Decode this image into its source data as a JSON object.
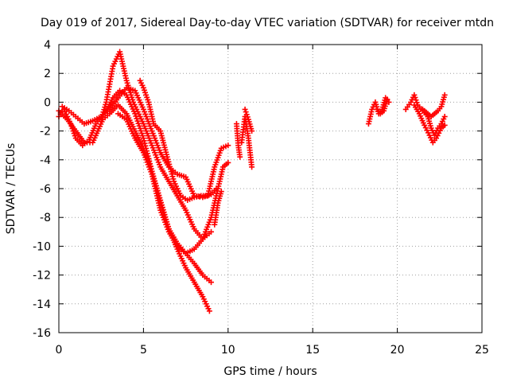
{
  "chart_data": {
    "type": "scatter",
    "title": "Day 019 of 2017, Sidereal Day-to-day VTEC variation (SDTVAR) for receiver mtdn",
    "xlabel": "GPS time / hours",
    "ylabel": "SDTVAR / TECUs",
    "xlim": [
      0,
      25
    ],
    "ylim": [
      -16,
      4
    ],
    "xticks": [
      0,
      5,
      10,
      15,
      20,
      25
    ],
    "yticks": [
      -16,
      -14,
      -12,
      -10,
      -8,
      -6,
      -4,
      -2,
      0,
      2,
      4
    ],
    "grid": true,
    "marker": "plus",
    "color": "#ff0000",
    "tracks": [
      [
        [
          0.0,
          -1.0
        ],
        [
          0.3,
          -0.5
        ],
        [
          0.7,
          -1.5
        ],
        [
          1.0,
          -2.5
        ],
        [
          1.4,
          -3.0
        ],
        [
          1.8,
          -2.6
        ],
        [
          2.2,
          -1.5
        ],
        [
          2.5,
          -1.0
        ],
        [
          2.8,
          -0.6
        ],
        [
          3.2,
          0.3
        ],
        [
          3.6,
          0.8
        ],
        [
          4.0,
          0.5
        ],
        [
          4.5,
          -0.8
        ],
        [
          5.0,
          -2.5
        ],
        [
          5.5,
          -4.8
        ],
        [
          6.0,
          -7.0
        ],
        [
          6.5,
          -8.8
        ],
        [
          7.0,
          -9.8
        ],
        [
          7.5,
          -10.5
        ],
        [
          8.0,
          -11.2
        ],
        [
          8.5,
          -12.0
        ],
        [
          9.0,
          -12.5
        ]
      ],
      [
        [
          0.0,
          -0.6
        ],
        [
          0.5,
          -1.2
        ],
        [
          1.0,
          -2.0
        ],
        [
          1.5,
          -2.8
        ],
        [
          2.0,
          -2.8
        ],
        [
          2.3,
          -2.0
        ],
        [
          2.6,
          -1.2
        ],
        [
          3.0,
          -0.8
        ],
        [
          3.5,
          -0.2
        ],
        [
          4.0,
          -0.8
        ],
        [
          4.5,
          -2.0
        ],
        [
          5.0,
          -3.2
        ],
        [
          5.5,
          -4.8
        ],
        [
          6.0,
          -6.8
        ],
        [
          6.5,
          -8.8
        ],
        [
          7.0,
          -10.2
        ],
        [
          7.5,
          -11.5
        ],
        [
          8.0,
          -12.5
        ],
        [
          8.5,
          -13.5
        ],
        [
          8.9,
          -14.5
        ]
      ],
      [
        [
          0.2,
          -0.3
        ],
        [
          0.6,
          -0.6
        ],
        [
          1.0,
          -1.0
        ],
        [
          1.5,
          -1.5
        ],
        [
          2.0,
          -1.3
        ],
        [
          2.5,
          -1.0
        ],
        [
          3.0,
          -0.5
        ],
        [
          3.5,
          0.3
        ],
        [
          4.0,
          1.0
        ],
        [
          4.5,
          0.8
        ],
        [
          5.0,
          -0.5
        ],
        [
          5.5,
          -2.0
        ],
        [
          6.0,
          -3.5
        ],
        [
          6.5,
          -4.5
        ],
        [
          7.0,
          -5.0
        ],
        [
          7.5,
          -5.2
        ],
        [
          8.0,
          -6.5
        ],
        [
          8.5,
          -6.6
        ],
        [
          9.0,
          -6.4
        ],
        [
          9.3,
          -6.0
        ]
      ],
      [
        [
          2.5,
          -1.2
        ],
        [
          2.8,
          0.0
        ],
        [
          3.2,
          2.5
        ],
        [
          3.6,
          3.5
        ],
        [
          4.0,
          1.5
        ],
        [
          4.4,
          0.0
        ],
        [
          5.0,
          -1.5
        ],
        [
          5.5,
          -3.0
        ],
        [
          6.0,
          -4.5
        ],
        [
          6.5,
          -5.5
        ],
        [
          7.0,
          -6.5
        ],
        [
          7.5,
          -7.5
        ],
        [
          8.0,
          -8.8
        ],
        [
          8.5,
          -9.5
        ],
        [
          9.0,
          -9.0
        ]
      ],
      [
        [
          4.8,
          1.5
        ],
        [
          5.0,
          1.0
        ],
        [
          5.3,
          0.0
        ],
        [
          5.6,
          -1.5
        ],
        [
          6.0,
          -2.0
        ],
        [
          6.4,
          -3.8
        ],
        [
          6.8,
          -5.5
        ],
        [
          7.2,
          -6.5
        ],
        [
          7.6,
          -6.8
        ],
        [
          8.0,
          -6.6
        ],
        [
          8.4,
          -6.5
        ],
        [
          8.8,
          -6.5
        ],
        [
          9.2,
          -4.5
        ],
        [
          9.6,
          -3.2
        ],
        [
          10.0,
          -3.0
        ]
      ],
      [
        [
          3.5,
          -0.8
        ],
        [
          4.0,
          -1.2
        ],
        [
          4.5,
          -2.5
        ],
        [
          5.0,
          -3.5
        ],
        [
          5.5,
          -5.0
        ],
        [
          6.0,
          -7.5
        ],
        [
          6.5,
          -9.0
        ],
        [
          7.0,
          -10.0
        ],
        [
          7.5,
          -10.5
        ],
        [
          8.0,
          -10.2
        ],
        [
          8.5,
          -9.5
        ],
        [
          9.0,
          -8.0
        ],
        [
          9.4,
          -6.0
        ],
        [
          9.7,
          -4.5
        ],
        [
          10.0,
          -4.2
        ]
      ],
      [
        [
          9.2,
          -8.5
        ],
        [
          9.4,
          -7.0
        ],
        [
          9.6,
          -6.2
        ]
      ],
      [
        [
          10.5,
          -1.5
        ],
        [
          10.6,
          -3.0
        ],
        [
          10.7,
          -3.8
        ]
      ],
      [
        [
          10.8,
          -2.8
        ],
        [
          11.0,
          -1.0
        ],
        [
          11.2,
          -2.5
        ],
        [
          11.3,
          -3.5
        ],
        [
          11.4,
          -4.5
        ]
      ],
      [
        [
          11.0,
          -0.5
        ],
        [
          11.2,
          -1.2
        ],
        [
          11.4,
          -2.0
        ]
      ],
      [
        [
          18.3,
          -1.5
        ],
        [
          18.5,
          -0.5
        ],
        [
          18.7,
          0.0
        ],
        [
          18.9,
          -0.8
        ],
        [
          19.1,
          -0.5
        ],
        [
          19.3,
          0.3
        ],
        [
          19.5,
          0.0
        ]
      ],
      [
        [
          18.8,
          -0.5
        ],
        [
          19.0,
          -0.8
        ],
        [
          19.2,
          -0.6
        ],
        [
          19.4,
          0.2
        ]
      ],
      [
        [
          20.5,
          -0.5
        ],
        [
          20.8,
          0.0
        ],
        [
          21.0,
          0.5
        ],
        [
          21.2,
          -0.2
        ],
        [
          21.5,
          -0.6
        ],
        [
          21.8,
          -1.0
        ],
        [
          22.0,
          -1.8
        ],
        [
          22.2,
          -2.3
        ],
        [
          22.4,
          -1.8
        ],
        [
          22.6,
          -1.5
        ],
        [
          22.8,
          -1.0
        ]
      ],
      [
        [
          21.0,
          -0.2
        ],
        [
          21.3,
          -0.8
        ],
        [
          21.6,
          -1.6
        ],
        [
          21.9,
          -2.3
        ],
        [
          22.1,
          -2.8
        ],
        [
          22.3,
          -2.5
        ],
        [
          22.6,
          -1.8
        ],
        [
          22.8,
          -1.6
        ]
      ],
      [
        [
          21.5,
          -0.5
        ],
        [
          21.8,
          -0.8
        ],
        [
          22.0,
          -1.0
        ],
        [
          22.2,
          -0.8
        ],
        [
          22.4,
          -0.6
        ],
        [
          22.6,
          -0.3
        ],
        [
          22.8,
          0.5
        ]
      ]
    ]
  }
}
